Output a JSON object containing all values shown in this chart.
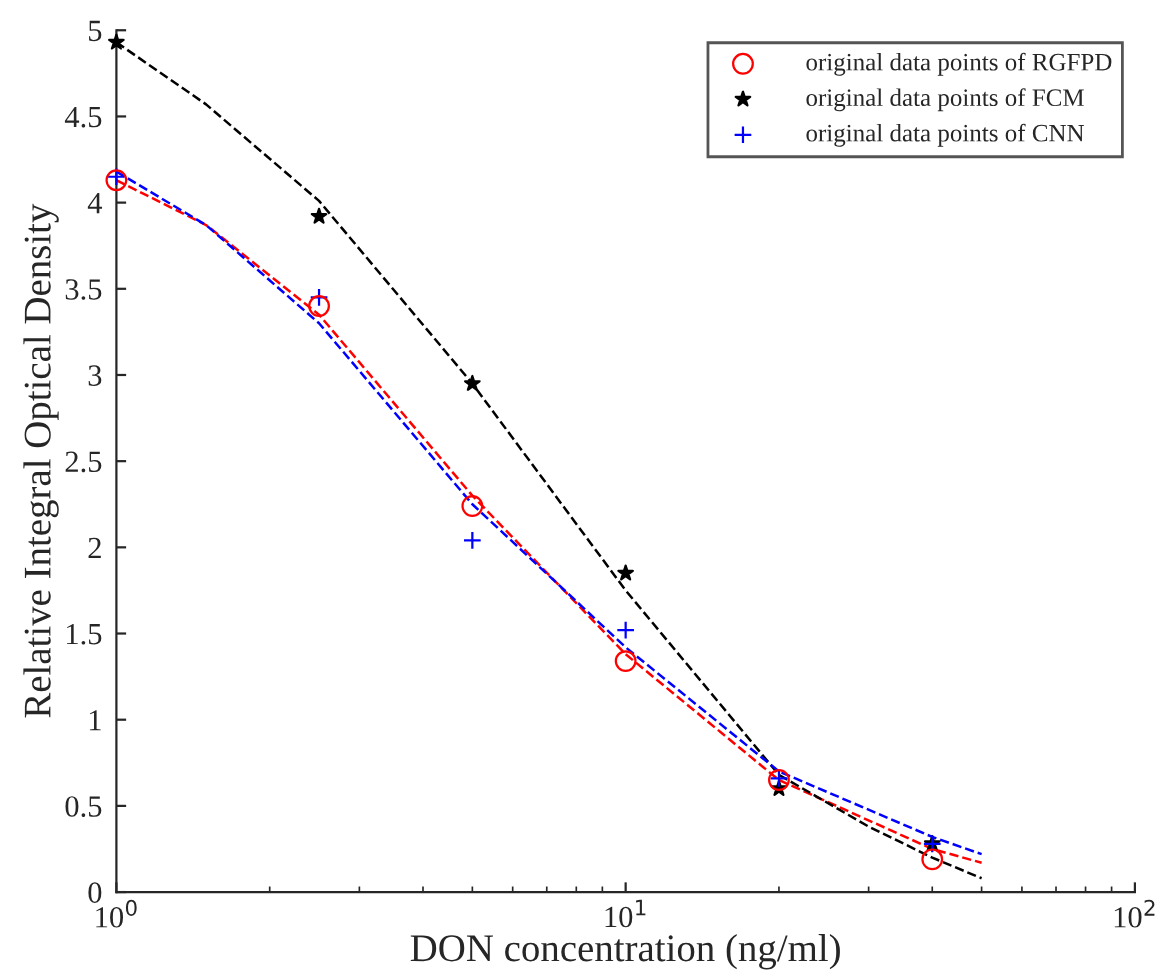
{
  "chart_data": {
    "type": "scatter",
    "xlabel": "DON concentration (ng/ml)",
    "ylabel": "Relative Integral Optical Density",
    "log": "x",
    "xlim": [
      1,
      100
    ],
    "ylim": [
      0,
      5
    ],
    "xticks": [
      {
        "value": 1,
        "label": "10$^{0}$"
      },
      {
        "value": 10,
        "label": "10$^{1}$"
      },
      {
        "value": 100,
        "label": "10$^{2}$"
      }
    ],
    "yticks": [
      0,
      0.5,
      1,
      1.5,
      2,
      2.5,
      3,
      3.5,
      4,
      4.5,
      5
    ],
    "grid": false,
    "legend": "top right",
    "series": [
      {
        "type": "line",
        "color": "#ff0000",
        "line_style": "dashed",
        "marker": "none",
        "x": [
          1,
          1.5,
          2.5,
          5,
          10,
          20,
          40,
          50
        ],
        "values": [
          4.13,
          3.87,
          3.35,
          2.3,
          1.38,
          0.65,
          0.25,
          0.17
        ]
      },
      {
        "type": "line",
        "color": "#000000",
        "line_style": "dashed",
        "marker": "none",
        "x": [
          1,
          1.5,
          2.5,
          5,
          10,
          20,
          30,
          40,
          50
        ],
        "values": [
          4.93,
          4.57,
          4.01,
          2.95,
          1.75,
          0.68,
          0.38,
          0.2,
          0.08
        ]
      },
      {
        "type": "line",
        "color": "#0000ff",
        "line_style": "dashed",
        "marker": "none",
        "x": [
          1,
          1.5,
          2.5,
          5,
          10,
          20,
          40,
          50
        ],
        "values": [
          4.18,
          3.87,
          3.3,
          2.25,
          1.42,
          0.7,
          0.32,
          0.22
        ]
      },
      {
        "name": "original data points of RGFPD",
        "color": "#ff0000",
        "marker": "circle",
        "x": [
          1,
          2.5,
          5,
          10,
          20,
          40
        ],
        "values": [
          4.13,
          3.4,
          2.24,
          1.34,
          0.65,
          0.19
        ]
      },
      {
        "name": "original data points of FCM",
        "color": "#000000",
        "marker": "star",
        "x": [
          1,
          2.5,
          5,
          10,
          20,
          40
        ],
        "values": [
          4.93,
          3.92,
          2.95,
          1.85,
          0.6,
          0.28
        ]
      },
      {
        "name": "original data points of CNN",
        "color": "#0000ff",
        "marker": "cross",
        "x": [
          1,
          2.5,
          5,
          10,
          20,
          40
        ],
        "values": [
          4.15,
          3.45,
          2.04,
          1.52,
          0.66,
          0.28
        ]
      }
    ]
  }
}
